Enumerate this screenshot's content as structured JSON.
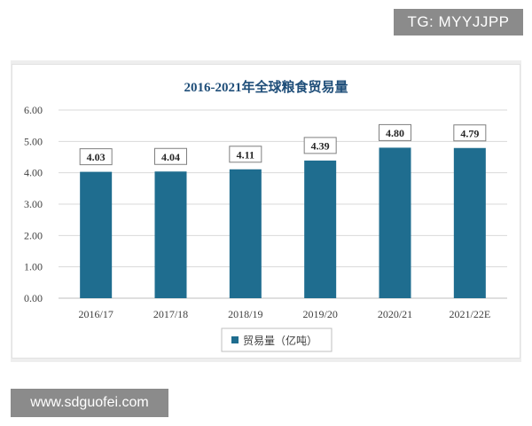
{
  "watermarks": {
    "top": "TG: MYYJJPP",
    "bottom": "www.sdguofei.com"
  },
  "colors": {
    "bar": "#1f6d8f",
    "title": "#1f4e79",
    "grid": "#d9d9d9",
    "axis_text": "#404040"
  },
  "chart_data": {
    "type": "bar",
    "title": "2016-2021年全球粮食贸易量",
    "xlabel": "",
    "ylabel": "",
    "categories": [
      "2016/17",
      "2017/18",
      "2018/19",
      "2019/20",
      "2020/21",
      "2021/22E"
    ],
    "series": [
      {
        "name": "贸易量（亿吨）",
        "values": [
          4.03,
          4.04,
          4.11,
          4.39,
          4.8,
          4.79
        ]
      }
    ],
    "data_labels": [
      "4.03",
      "4.04",
      "4.11",
      "4.39",
      "4.80",
      "4.79"
    ],
    "yticks": [
      "0.00",
      "1.00",
      "2.00",
      "3.00",
      "4.00",
      "5.00",
      "6.00"
    ],
    "ylim": [
      0,
      6
    ],
    "grid": true,
    "legend_position": "bottom"
  }
}
